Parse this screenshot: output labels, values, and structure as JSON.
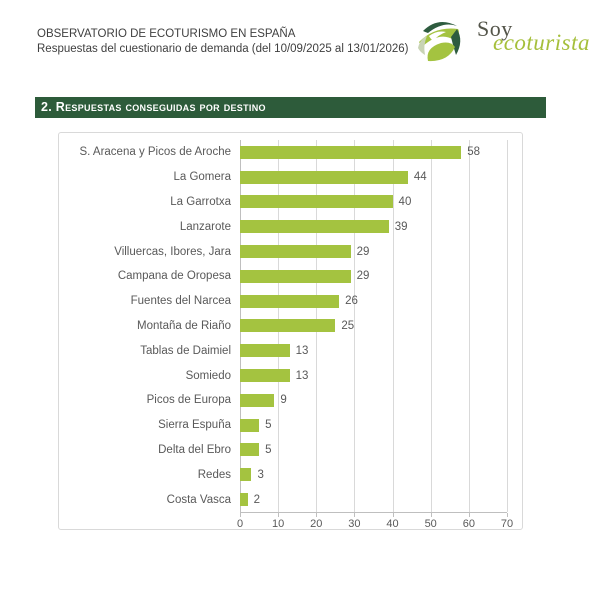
{
  "header": {
    "title_line1": "OBSERVATORIO DE ECOTURISMO EN ESPAÑA",
    "title_line2": "Respuestas del cuestionario de demanda (del 10/09/2025 al 13/01/2026)",
    "logo": {
      "word1": "Soy",
      "word2": "ecoturista",
      "icon": "leaf-swirl-icon"
    }
  },
  "section": {
    "title": "2. Respuestas conseguidas por destino"
  },
  "chart_data": {
    "type": "bar",
    "orientation": "horizontal",
    "title": "",
    "xlabel": "",
    "ylabel": "",
    "categories": [
      "S. Aracena y Picos de Aroche",
      "La Gomera",
      "La Garrotxa",
      "Lanzarote",
      "Villuercas, Ibores, Jara",
      "Campana de Oropesa",
      "Fuentes del Narcea",
      "Montaña de Riaño",
      "Tablas de Daimiel",
      "Somiedo",
      "Picos de Europa",
      "Sierra Espuña",
      "Delta del Ebro",
      "Redes",
      "Costa Vasca"
    ],
    "values": [
      58,
      44,
      40,
      39,
      29,
      29,
      26,
      25,
      13,
      13,
      9,
      5,
      5,
      3,
      2
    ],
    "xlim": [
      0,
      70
    ],
    "xticks": [
      0,
      10,
      20,
      30,
      40,
      50,
      60,
      70
    ],
    "grid": true,
    "legend": false,
    "data_labels": true,
    "bar_color": "#a4c340",
    "label_color": "#595959"
  },
  "colors": {
    "banner_green": "#2d5b3a",
    "bar_green": "#a4c340",
    "logo_light_green": "#a5bf3b",
    "logo_dark_green": "#2e5c3f",
    "logo_text_gray": "#54554a",
    "chart_border": "#d9d9d9",
    "text_gray": "#595959"
  }
}
